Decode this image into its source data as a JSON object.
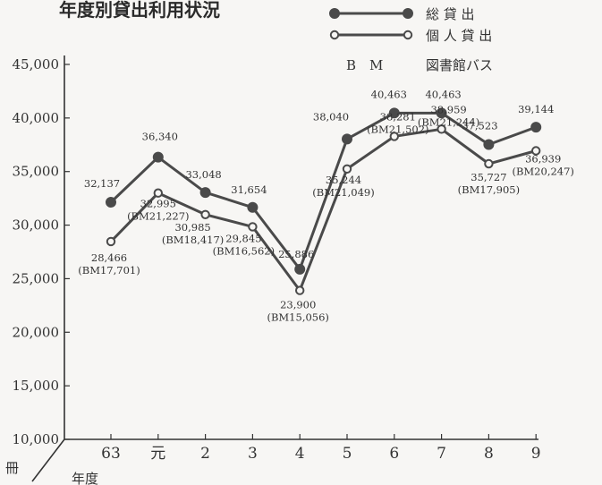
{
  "chart_data": {
    "type": "line",
    "title": "年度別貸出利用状況",
    "ylabel": "冊",
    "xlabel": "年度",
    "ylim": [
      10000,
      45000
    ],
    "yticks": [
      "10,000",
      "15,000",
      "20,000",
      "25,000",
      "30,000",
      "35,000",
      "40,000",
      "45,000"
    ],
    "categories": [
      "63",
      "元",
      "2",
      "3",
      "4",
      "5",
      "6",
      "7",
      "8",
      "9"
    ],
    "series": [
      {
        "name": "総 貸 出",
        "marker": "filled",
        "values": [
          32137,
          36340,
          33048,
          31654,
          25886,
          38040,
          40463,
          40463,
          37523,
          39144
        ],
        "labels": [
          "32,137",
          "36,340",
          "33,048",
          "31,654",
          "25,886",
          "38,040",
          "40,463",
          "40,463",
          "37,523",
          "39,144"
        ]
      },
      {
        "name": "個 人 貸 出",
        "marker": "open",
        "values": [
          28466,
          32995,
          30985,
          29845,
          23900,
          35244,
          38281,
          38959,
          35727,
          36939
        ],
        "labels": [
          "28,466",
          "32,995",
          "30,985",
          "29,845",
          "23,900",
          "35,244",
          "38,281",
          "38,959",
          "35,727",
          "36,939"
        ],
        "bm_values": [
          17701,
          21227,
          18417,
          16562,
          15056,
          21049,
          21502,
          21244,
          17905,
          20247
        ],
        "bm_labels": [
          "(BM17,701)",
          "(BM21,227)",
          "(BM18,417)",
          "(BM16,562)",
          "(BM15,056)",
          "(BM21,049)",
          "(BM21,502)",
          "(BM21,244)",
          "(BM17,905)",
          "(BM20,247)"
        ]
      }
    ],
    "legend": {
      "placement": "top-right",
      "note_abbr": "B　M",
      "note_text": "図書館バス"
    },
    "grid": false
  },
  "colors": {
    "line": "#4a4a4a",
    "axis": "#333333",
    "background": "#f7f6f4"
  }
}
